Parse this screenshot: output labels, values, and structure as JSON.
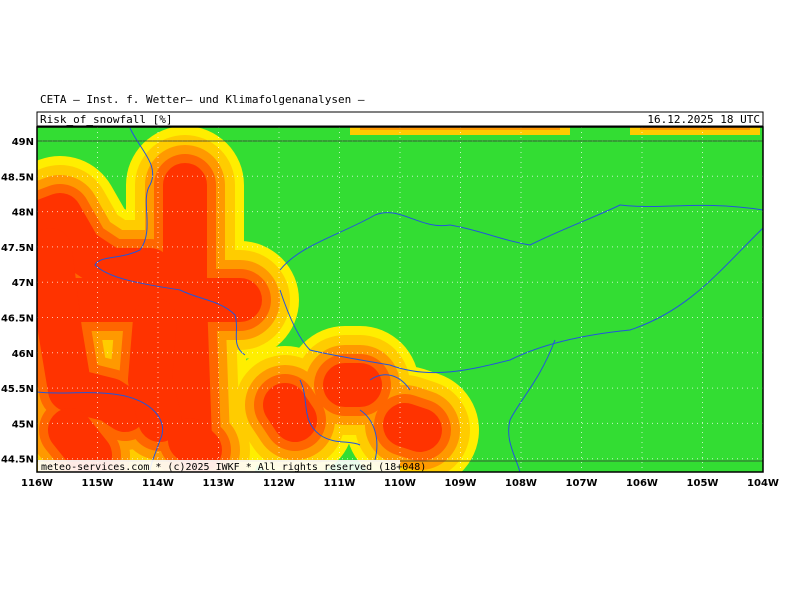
{
  "header": {
    "title": "CETA – Inst. f. Wetter– und Klimafolgenanalysen –",
    "parameter": "Risk_of_snowfall [%]",
    "valid_time": "16.12.2025 18 UTC"
  },
  "map": {
    "lat_labels": [
      "49N",
      "48.5N",
      "48N",
      "47.5N",
      "47N",
      "46.5N",
      "46N",
      "45.5N",
      "45N",
      "44.5N"
    ],
    "lon_labels": [
      "116W",
      "115W",
      "114W",
      "113W",
      "112W",
      "111W",
      "110W",
      "109W",
      "108W",
      "107W",
      "106W",
      "105W",
      "104W"
    ],
    "footer": "meteo-services.com * (c)2025 IWKF * All rights reserved (18+048)"
  }
}
